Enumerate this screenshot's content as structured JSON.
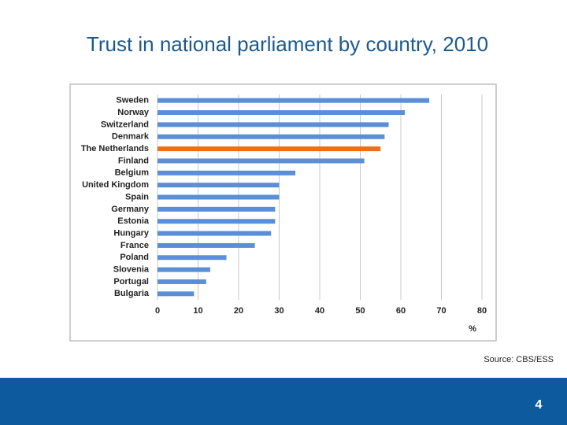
{
  "chart_data": {
    "type": "bar",
    "orientation": "horizontal",
    "title": "Trust in national parliament by country, 2010",
    "categories": [
      "Sweden",
      "Norway",
      "Switzerland",
      "Denmark",
      "The Netherlands",
      "Finland",
      "Belgium",
      "United Kingdom",
      "Spain",
      "Germany",
      "Estonia",
      "Hungary",
      "France",
      "Poland",
      "Slovenia",
      "Portugal",
      "Bulgaria"
    ],
    "values": [
      67,
      61,
      57,
      56,
      55,
      51,
      34,
      30,
      30,
      29,
      29,
      28,
      24,
      17,
      13,
      12,
      9
    ],
    "colors": [
      "#5a8fd8",
      "#5a8fd8",
      "#5a8fd8",
      "#5a8fd8",
      "#ec6f1a",
      "#5a8fd8",
      "#5a8fd8",
      "#5a8fd8",
      "#5a8fd8",
      "#5a8fd8",
      "#5a8fd8",
      "#5a8fd8",
      "#5a8fd8",
      "#5a8fd8",
      "#5a8fd8",
      "#5a8fd8",
      "#5a8fd8"
    ],
    "xlim": [
      0,
      80
    ],
    "xticks": [
      0,
      10,
      20,
      30,
      40,
      50,
      60,
      70,
      80
    ],
    "x_label": "%",
    "grid": true
  },
  "footer": {
    "source": "Source: CBS/ESS",
    "page_number": "4"
  }
}
